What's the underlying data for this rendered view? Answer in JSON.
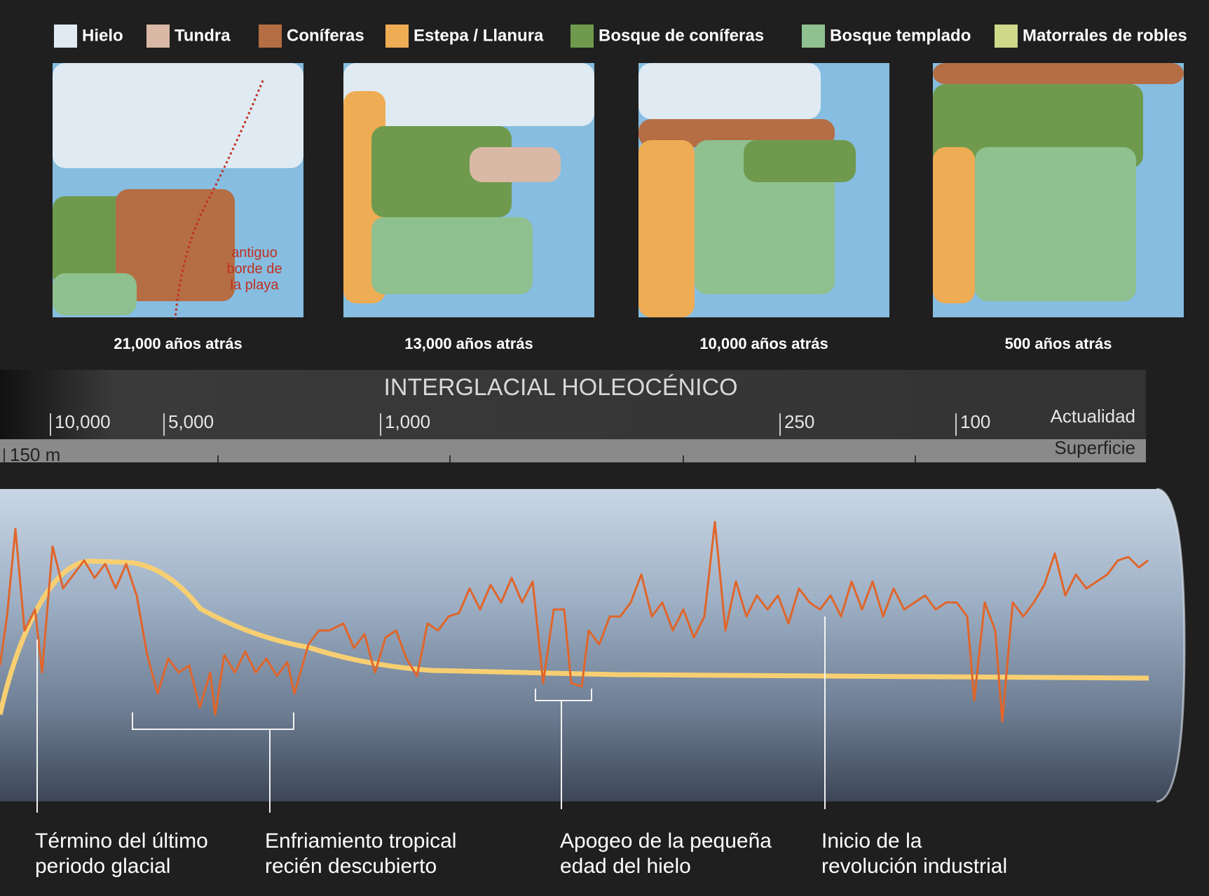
{
  "legend": [
    {
      "label": "Hielo",
      "color": "#dfeaf2"
    },
    {
      "label": "Tundra",
      "color": "#d9b9a6"
    },
    {
      "label": "Coníferas",
      "color": "#b56d43"
    },
    {
      "label": "Estepa / Llanura",
      "color": "#eeac55"
    },
    {
      "label": "Bosque de coníferas",
      "color": "#6f9a4d"
    },
    {
      "label": "Bosque templado",
      "color": "#8fc08f"
    },
    {
      "label": "Matorrales de robles",
      "color": "#cfd98a"
    }
  ],
  "maps": [
    {
      "caption": "21,000 años atrás"
    },
    {
      "caption": "13,000 años atrás"
    },
    {
      "caption": "10,000 años atrás"
    },
    {
      "caption": "500 años atrás"
    }
  ],
  "map_note": [
    "antiguo",
    "borde de",
    "la playa"
  ],
  "timeline": {
    "title": "INTERGLACIAL HOLEOCÉNICO",
    "ages": [
      "10,000",
      "5,000",
      "1,000",
      "250",
      "100"
    ],
    "present": "Actualidad",
    "depth_bottom": "150 m",
    "depth_top": "Superficie"
  },
  "annotations": [
    {
      "lines": [
        "Término del último",
        "periodo glacial"
      ]
    },
    {
      "lines": [
        "Enfriamiento tropical",
        "recién descubierto"
      ]
    },
    {
      "lines": [
        "Apogeo de la pequeña",
        "edad del hielo"
      ]
    },
    {
      "lines": [
        "Inicio de la",
        "revolución industrial"
      ]
    }
  ]
}
